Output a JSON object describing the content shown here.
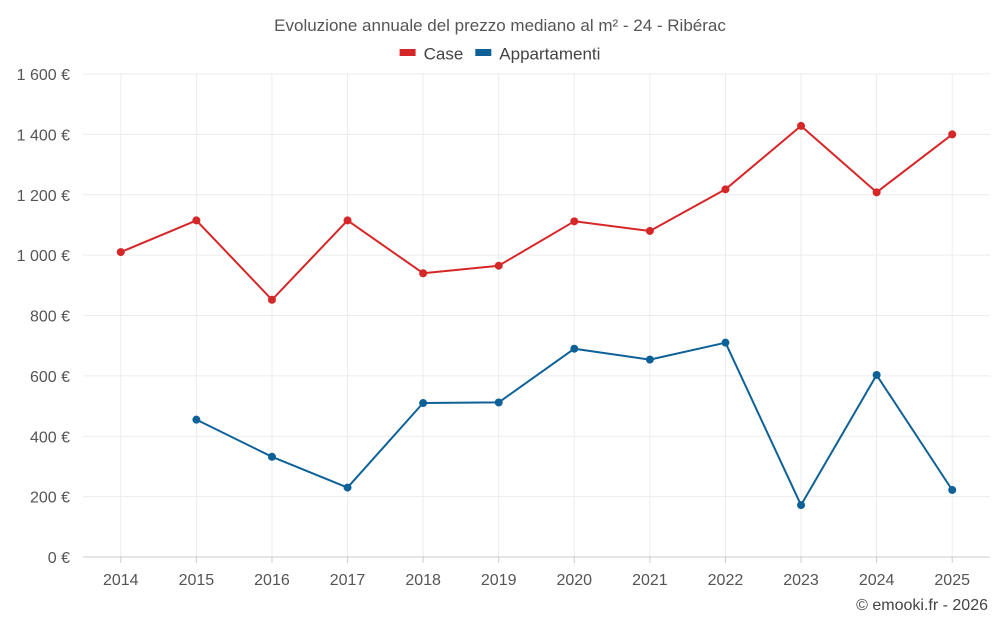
{
  "chart_data": {
    "type": "line",
    "title": "Evoluzione annuale del prezzo mediano al m² - 24 - Ribérac",
    "categories": [
      "2014",
      "2015",
      "2016",
      "2017",
      "2018",
      "2019",
      "2020",
      "2021",
      "2022",
      "2023",
      "2024",
      "2025"
    ],
    "series": [
      {
        "name": "Case",
        "color": "#d62728",
        "values": [
          1010,
          1115,
          852,
          1115,
          940,
          965,
          1112,
          1080,
          1218,
          1428,
          1208,
          1400
        ]
      },
      {
        "name": "Appartamenti",
        "color": "#0e6197",
        "values": [
          null,
          455,
          332,
          230,
          510,
          512,
          690,
          654,
          710,
          172,
          603,
          222
        ]
      }
    ],
    "ylim": [
      0,
      1600
    ],
    "yticks": [
      0,
      200,
      400,
      600,
      800,
      1000,
      1200,
      1400,
      1600
    ],
    "ytick_labels": [
      "0 €",
      "200 €",
      "400 €",
      "600 €",
      "800 €",
      "1 000 €",
      "1 200 €",
      "1 400 €",
      "1 600 €"
    ],
    "grid": true,
    "legend_position": "top-center"
  },
  "credit": "© emooki.fr - 2026"
}
